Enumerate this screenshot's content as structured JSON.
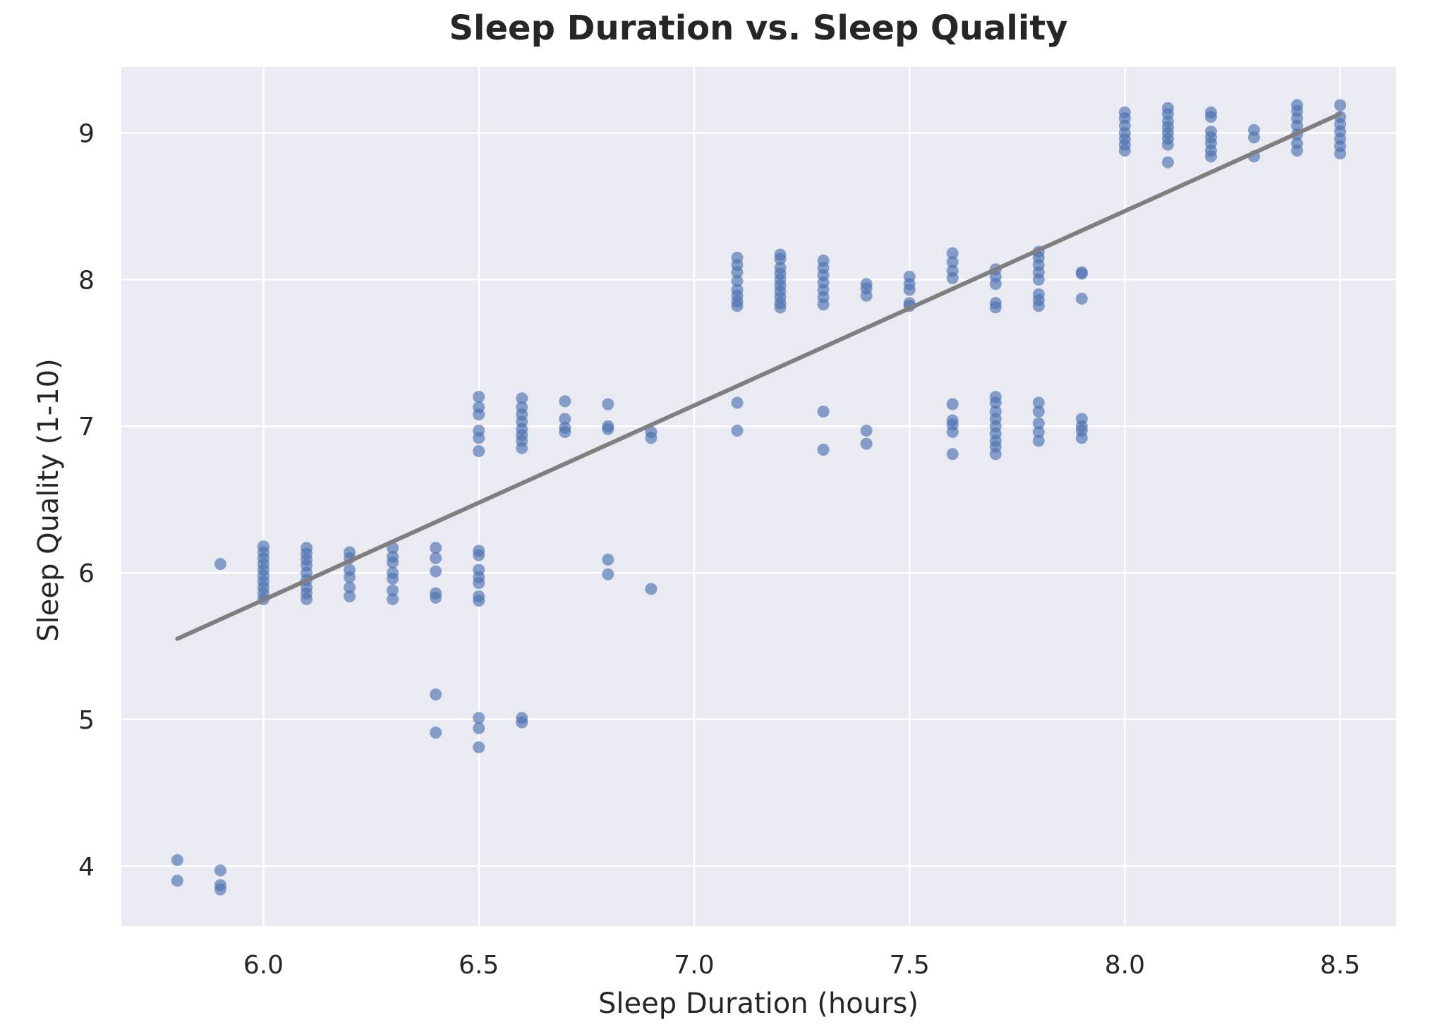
{
  "chart_data": {
    "type": "scatter",
    "title": "Sleep Duration vs. Sleep Quality",
    "xlabel": "Sleep Duration (hours)",
    "ylabel": "Sleep Quality (1-10)",
    "xlim": [
      5.67,
      8.63
    ],
    "ylim": [
      3.59,
      9.45
    ],
    "x_ticks": [
      6.0,
      6.5,
      7.0,
      7.5,
      8.0,
      8.5
    ],
    "x_tick_labels": [
      "6.0",
      "6.5",
      "7.0",
      "7.5",
      "8.0",
      "8.5"
    ],
    "y_ticks": [
      4,
      5,
      6,
      7,
      8,
      9
    ],
    "y_tick_labels": [
      "4",
      "5",
      "6",
      "7",
      "8",
      "9"
    ],
    "grid": true,
    "background_color": "#eaeaf2",
    "point_color": "#4c72b0",
    "line_color": "#7f7f7f",
    "series": [
      {
        "kind": "points",
        "points": [
          [
            5.8,
            4.04
          ],
          [
            5.8,
            3.9
          ],
          [
            5.9,
            6.06
          ],
          [
            5.9,
            3.97
          ],
          [
            5.9,
            3.87
          ],
          [
            5.9,
            3.84
          ],
          [
            6.0,
            6.18
          ],
          [
            6.0,
            6.14
          ],
          [
            6.0,
            6.1
          ],
          [
            6.0,
            6.06
          ],
          [
            6.0,
            6.02
          ],
          [
            6.0,
            5.98
          ],
          [
            6.0,
            5.94
          ],
          [
            6.0,
            5.9
          ],
          [
            6.0,
            5.86
          ],
          [
            6.0,
            5.82
          ],
          [
            6.1,
            6.17
          ],
          [
            6.1,
            6.13
          ],
          [
            6.1,
            6.09
          ],
          [
            6.1,
            6.05
          ],
          [
            6.1,
            6.0
          ],
          [
            6.1,
            5.95
          ],
          [
            6.1,
            5.9
          ],
          [
            6.1,
            5.86
          ],
          [
            6.1,
            5.82
          ],
          [
            6.2,
            6.14
          ],
          [
            6.2,
            6.1
          ],
          [
            6.2,
            6.02
          ],
          [
            6.2,
            5.97
          ],
          [
            6.2,
            5.9
          ],
          [
            6.2,
            5.84
          ],
          [
            6.3,
            6.17
          ],
          [
            6.3,
            6.11
          ],
          [
            6.3,
            6.07
          ],
          [
            6.3,
            6.0
          ],
          [
            6.3,
            5.96
          ],
          [
            6.3,
            5.88
          ],
          [
            6.3,
            5.82
          ],
          [
            6.4,
            6.17
          ],
          [
            6.4,
            6.1
          ],
          [
            6.4,
            6.01
          ],
          [
            6.4,
            5.86
          ],
          [
            6.4,
            5.83
          ],
          [
            6.4,
            5.17
          ],
          [
            6.4,
            4.91
          ],
          [
            6.5,
            7.2
          ],
          [
            6.5,
            7.13
          ],
          [
            6.5,
            7.08
          ],
          [
            6.5,
            6.97
          ],
          [
            6.5,
            6.92
          ],
          [
            6.5,
            6.83
          ],
          [
            6.5,
            6.15
          ],
          [
            6.5,
            6.12
          ],
          [
            6.5,
            6.02
          ],
          [
            6.5,
            5.97
          ],
          [
            6.5,
            5.93
          ],
          [
            6.5,
            5.84
          ],
          [
            6.5,
            5.81
          ],
          [
            6.5,
            5.01
          ],
          [
            6.5,
            4.94
          ],
          [
            6.5,
            4.81
          ],
          [
            6.6,
            7.19
          ],
          [
            6.6,
            7.13
          ],
          [
            6.6,
            7.08
          ],
          [
            6.6,
            7.03
          ],
          [
            6.6,
            6.98
          ],
          [
            6.6,
            6.94
          ],
          [
            6.6,
            6.9
          ],
          [
            6.6,
            6.85
          ],
          [
            6.6,
            5.01
          ],
          [
            6.6,
            4.98
          ],
          [
            6.7,
            7.17
          ],
          [
            6.7,
            7.05
          ],
          [
            6.7,
            6.99
          ],
          [
            6.7,
            6.96
          ],
          [
            6.8,
            7.15
          ],
          [
            6.8,
            7.0
          ],
          [
            6.8,
            6.98
          ],
          [
            6.8,
            6.09
          ],
          [
            6.8,
            5.99
          ],
          [
            6.9,
            6.96
          ],
          [
            6.9,
            6.92
          ],
          [
            6.9,
            5.89
          ],
          [
            7.1,
            8.15
          ],
          [
            7.1,
            8.1
          ],
          [
            7.1,
            8.05
          ],
          [
            7.1,
            7.99
          ],
          [
            7.1,
            7.93
          ],
          [
            7.1,
            7.89
          ],
          [
            7.1,
            7.85
          ],
          [
            7.1,
            7.82
          ],
          [
            7.1,
            7.16
          ],
          [
            7.1,
            6.97
          ],
          [
            7.2,
            8.17
          ],
          [
            7.2,
            8.14
          ],
          [
            7.2,
            8.08
          ],
          [
            7.2,
            8.04
          ],
          [
            7.2,
            8.0
          ],
          [
            7.2,
            7.96
          ],
          [
            7.2,
            7.92
          ],
          [
            7.2,
            7.88
          ],
          [
            7.2,
            7.84
          ],
          [
            7.2,
            7.81
          ],
          [
            7.3,
            8.13
          ],
          [
            7.3,
            8.08
          ],
          [
            7.3,
            8.03
          ],
          [
            7.3,
            7.98
          ],
          [
            7.3,
            7.93
          ],
          [
            7.3,
            7.88
          ],
          [
            7.3,
            7.83
          ],
          [
            7.3,
            7.1
          ],
          [
            7.3,
            6.84
          ],
          [
            7.4,
            7.97
          ],
          [
            7.4,
            7.94
          ],
          [
            7.4,
            7.89
          ],
          [
            7.4,
            6.97
          ],
          [
            7.4,
            6.88
          ],
          [
            7.5,
            8.02
          ],
          [
            7.5,
            7.97
          ],
          [
            7.5,
            7.93
          ],
          [
            7.5,
            7.84
          ],
          [
            7.5,
            7.82
          ],
          [
            7.6,
            8.18
          ],
          [
            7.6,
            8.12
          ],
          [
            7.6,
            8.06
          ],
          [
            7.6,
            8.01
          ],
          [
            7.6,
            7.15
          ],
          [
            7.6,
            7.04
          ],
          [
            7.6,
            7.01
          ],
          [
            7.6,
            6.96
          ],
          [
            7.6,
            6.81
          ],
          [
            7.7,
            8.07
          ],
          [
            7.7,
            8.02
          ],
          [
            7.7,
            7.97
          ],
          [
            7.7,
            7.84
          ],
          [
            7.7,
            7.81
          ],
          [
            7.7,
            7.2
          ],
          [
            7.7,
            7.16
          ],
          [
            7.7,
            7.1
          ],
          [
            7.7,
            7.05
          ],
          [
            7.7,
            7.0
          ],
          [
            7.7,
            6.95
          ],
          [
            7.7,
            6.9
          ],
          [
            7.7,
            6.86
          ],
          [
            7.7,
            6.81
          ],
          [
            7.8,
            8.19
          ],
          [
            7.8,
            8.15
          ],
          [
            7.8,
            8.1
          ],
          [
            7.8,
            8.05
          ],
          [
            7.8,
            8.0
          ],
          [
            7.8,
            7.9
          ],
          [
            7.8,
            7.86
          ],
          [
            7.8,
            7.82
          ],
          [
            7.8,
            7.16
          ],
          [
            7.8,
            7.1
          ],
          [
            7.8,
            7.02
          ],
          [
            7.8,
            6.96
          ],
          [
            7.8,
            6.9
          ],
          [
            7.9,
            8.05
          ],
          [
            7.9,
            8.04
          ],
          [
            7.9,
            7.87
          ],
          [
            7.9,
            7.05
          ],
          [
            7.9,
            7.0
          ],
          [
            7.9,
            6.97
          ],
          [
            7.9,
            6.92
          ],
          [
            8.0,
            9.14
          ],
          [
            8.0,
            9.1
          ],
          [
            8.0,
            9.05
          ],
          [
            8.0,
            9.0
          ],
          [
            8.0,
            8.96
          ],
          [
            8.0,
            8.92
          ],
          [
            8.0,
            8.88
          ],
          [
            8.1,
            9.17
          ],
          [
            8.1,
            9.13
          ],
          [
            8.1,
            9.08
          ],
          [
            8.1,
            9.04
          ],
          [
            8.1,
            9.0
          ],
          [
            8.1,
            8.96
          ],
          [
            8.1,
            8.92
          ],
          [
            8.1,
            8.8
          ],
          [
            8.2,
            9.14
          ],
          [
            8.2,
            9.11
          ],
          [
            8.2,
            9.01
          ],
          [
            8.2,
            8.97
          ],
          [
            8.2,
            8.93
          ],
          [
            8.2,
            8.88
          ],
          [
            8.2,
            8.84
          ],
          [
            8.3,
            9.02
          ],
          [
            8.3,
            8.97
          ],
          [
            8.3,
            8.84
          ],
          [
            8.4,
            9.19
          ],
          [
            8.4,
            9.15
          ],
          [
            8.4,
            9.1
          ],
          [
            8.4,
            9.05
          ],
          [
            8.4,
            8.99
          ],
          [
            8.4,
            8.93
          ],
          [
            8.4,
            8.88
          ],
          [
            8.5,
            9.19
          ],
          [
            8.5,
            9.11
          ],
          [
            8.5,
            9.06
          ],
          [
            8.5,
            9.01
          ],
          [
            8.5,
            8.96
          ],
          [
            8.5,
            8.91
          ],
          [
            8.5,
            8.86
          ]
        ]
      },
      {
        "kind": "regression_line",
        "x": [
          5.8,
          8.5
        ],
        "y": [
          5.55,
          9.13
        ]
      }
    ]
  }
}
